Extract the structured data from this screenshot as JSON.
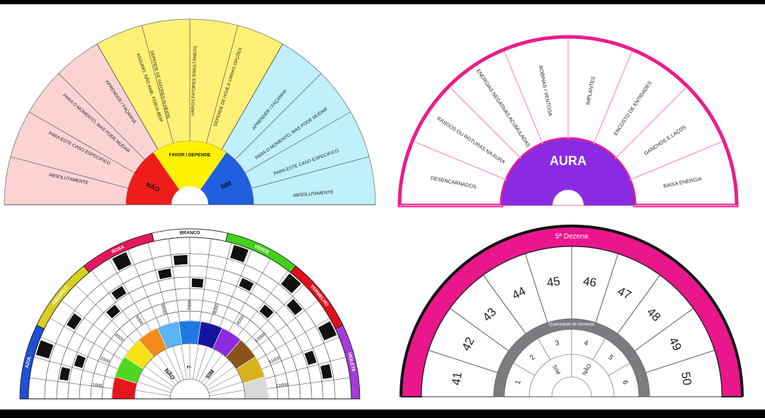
{
  "chart1": {
    "nao_label": "NÃO",
    "sim_label": "SIM",
    "center_label": "FAVOR / DEPENDE",
    "nao_segments": [
      "ABSOLUTAMENTE",
      "PARA ESTE CASO ESPECIFICO",
      "PARA O MOMENTO, MAS PODE MUDAR",
      "APRENDER / FAÇANHA",
      "ASSUMO, NÃO AME, FORJA BEM"
    ],
    "middle_segments": [
      "DEPENDE DE FATORES ALHEIOS",
      "VÁRIOS FATORES SIMULTÂNEOS",
      "DEPENDE DE HOJE A VÁRIAS OPÇÕES"
    ],
    "sim_segments": [
      "APRENDER / FAÇANHA",
      "PARA O MOMENTO, MAS PODE MUDAR",
      "PARA ESTE CASO ESPECIFICO",
      "ABSOLUTAMENTE"
    ],
    "colors": {
      "pink": "#fcd3d3",
      "yellow": "#fff176",
      "cyan": "#bff0fb",
      "red": "#ef1c1c",
      "yellow_core": "#fff200",
      "blue": "#1f5fe0"
    }
  },
  "chart2": {
    "center_label": "AURA",
    "segments": [
      "DESENCARNADOS",
      "RASGOS OU ROTURAS NA AURA",
      "ENERGIAS NEGATIVAS ACUMULADAS",
      "BOBINAS / VENTOSA",
      "IMPLANTES",
      "ENCOSTO DE ENTIDADES",
      "GANCHOS E LAÇOS",
      "BAIXA ENERGIA"
    ],
    "colors": {
      "magenta": "#ec1c8c",
      "purple": "#8a2be2",
      "line": "#f7a3cf"
    }
  },
  "chart3": {
    "outer_labels": [
      "AZUL",
      "AMARELO",
      "ROSA",
      "BRANCO",
      "VERDE",
      "VERMELHO",
      "VIOLETA"
    ],
    "outer_colors": [
      "#1e4fd6",
      "#d8cf1e",
      "#e3185f",
      "#ffffff",
      "#43d01c",
      "#e0101a",
      "#a53bd8"
    ],
    "values": [
      "1000",
      "2000",
      "4000",
      "5000",
      "6500",
      "7000",
      "8000",
      "9000",
      "10000",
      "11000",
      "12000"
    ],
    "spectrum": [
      "#e6161c",
      "#4fd81f",
      "#f5e11a",
      "#f38a1a",
      "#5ab4f5",
      "#1e79e6",
      "#13139e",
      "#8d2be0",
      "#8b5419",
      "#d8b21d",
      "#d9d9d9"
    ],
    "inner_labels": [
      "NÃO",
      "?",
      "SIM"
    ]
  },
  "chart4": {
    "title": "5ª Dezena",
    "numbers": [
      "41",
      "42",
      "43",
      "44",
      "45",
      "46",
      "47",
      "48",
      "49",
      "50"
    ],
    "inner_title": "Quantidade de números",
    "inner_numbers": [
      "1",
      "2",
      "3",
      "4",
      "5",
      "6"
    ],
    "inner_labels": [
      "SIM",
      "NÃO"
    ],
    "colors": {
      "magenta": "#ea168c",
      "gray": "#7d7b80",
      "black": "#111111"
    }
  }
}
